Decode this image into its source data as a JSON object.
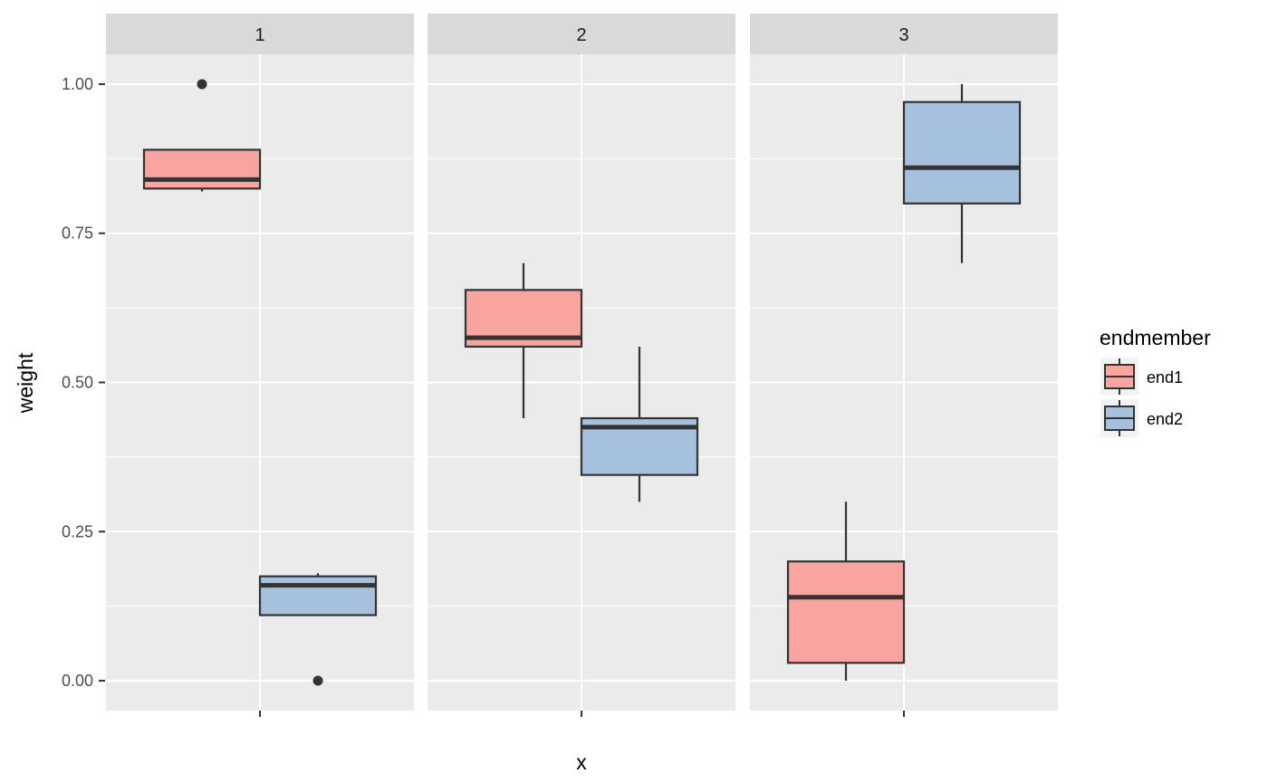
{
  "chart_data": {
    "type": "boxplot",
    "facet_labels": [
      "1",
      "2",
      "3"
    ],
    "xlabel": "x",
    "ylabel": "weight",
    "x_tick_labels": [
      "",
      "",
      ""
    ],
    "y_ticks": [
      0.0,
      0.25,
      0.5,
      0.75,
      1.0
    ],
    "y_tick_labels": [
      "0.00",
      "0.25",
      "0.50",
      "0.75",
      "1.00"
    ],
    "ylim": [
      -0.05,
      1.05
    ],
    "grid": true,
    "legend": {
      "title": "endmember",
      "position": "right",
      "entries": [
        {
          "label": "end1",
          "color": "#F8A5A0"
        },
        {
          "label": "end2",
          "color": "#A6C1DD"
        }
      ]
    },
    "series": [
      {
        "name": "end1",
        "color": "#F8A5A0",
        "boxes": [
          {
            "facet": "1",
            "whisker_low": 0.82,
            "q1": 0.825,
            "median": 0.84,
            "q3": 0.89,
            "whisker_high": 0.89,
            "outliers": [
              1.0
            ]
          },
          {
            "facet": "2",
            "whisker_low": 0.44,
            "q1": 0.56,
            "median": 0.575,
            "q3": 0.655,
            "whisker_high": 0.7,
            "outliers": []
          },
          {
            "facet": "3",
            "whisker_low": 0.0,
            "q1": 0.03,
            "median": 0.14,
            "q3": 0.2,
            "whisker_high": 0.3,
            "outliers": []
          }
        ]
      },
      {
        "name": "end2",
        "color": "#A6C1DD",
        "boxes": [
          {
            "facet": "1",
            "whisker_low": 0.11,
            "q1": 0.11,
            "median": 0.16,
            "q3": 0.175,
            "whisker_high": 0.18,
            "outliers": [
              0.0
            ]
          },
          {
            "facet": "2",
            "whisker_low": 0.3,
            "q1": 0.345,
            "median": 0.425,
            "q3": 0.44,
            "whisker_high": 0.56,
            "outliers": []
          },
          {
            "facet": "3",
            "whisker_low": 0.7,
            "q1": 0.8,
            "median": 0.86,
            "q3": 0.97,
            "whisker_high": 1.0,
            "outliers": []
          }
        ]
      }
    ]
  }
}
